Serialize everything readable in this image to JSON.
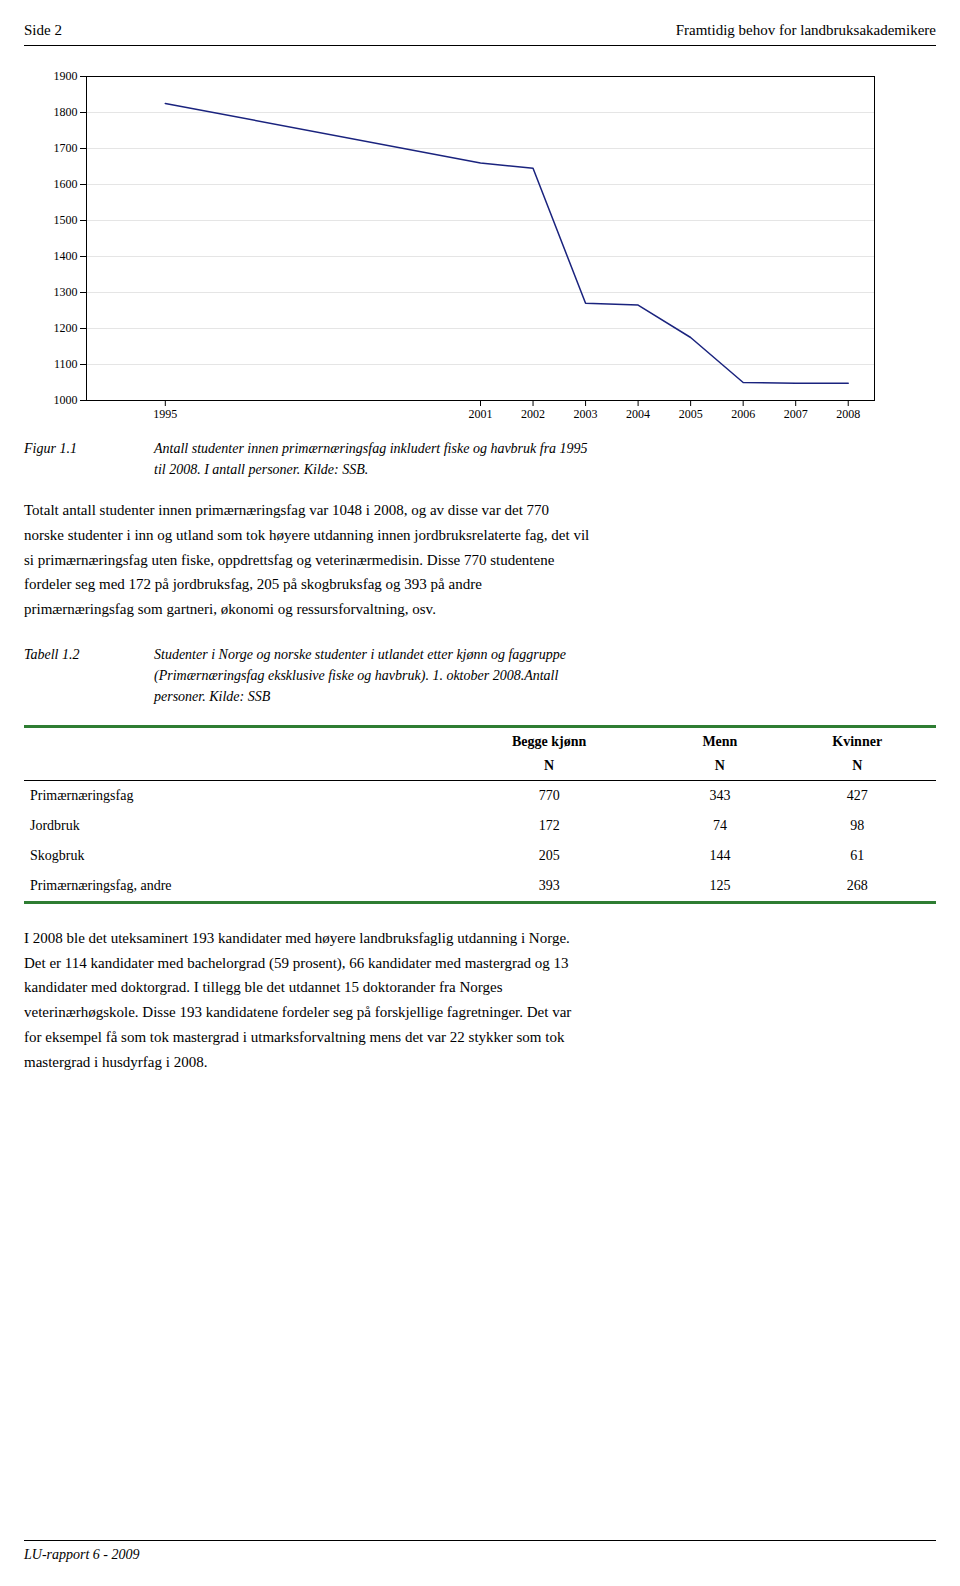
{
  "header_left": "Side 2",
  "header_right": "Framtidig behov for landbruksakademikere",
  "chart_data": {
    "type": "line",
    "x": [
      1995,
      2001,
      2002,
      2003,
      2004,
      2005,
      2006,
      2007,
      2008
    ],
    "values": [
      1825,
      1660,
      1645,
      1270,
      1265,
      1175,
      1050,
      1048,
      1048
    ],
    "color": "#1a237e",
    "xlim": [
      1993.5,
      2008.5
    ],
    "xticks": [
      1995,
      2001,
      2002,
      2003,
      2004,
      2005,
      2006,
      2007,
      2008
    ],
    "ylim": [
      1000,
      1900
    ],
    "yticks": [
      1000,
      1100,
      1200,
      1300,
      1400,
      1500,
      1600,
      1700,
      1800,
      1900
    ],
    "grid": true
  },
  "figure_caption": {
    "label": "Figur 1.1",
    "text": "Antall studenter innen primærnæringsfag inkludert fiske og havbruk fra 1995\ntil 2008. I antall personer. Kilde: SSB."
  },
  "body_text": "Totalt antall studenter innen primærnæringsfag var 1048 i 2008, og av disse var det 770\nnorske studenter i inn og utland som tok høyere utdanning innen jordbruksrelaterte fag, det vil\nsi primærnæringsfag uten fiske, oppdrettsfag og veterinærmedisin. Disse 770 studentene\nfordeler seg med 172 på jordbruksfag, 205 på skogbruksfag og 393 på andre\nprimærnæringsfag som gartneri, økonomi og ressursforvaltning, osv.",
  "table_caption": {
    "label": "Tabell 1.2",
    "text": "Studenter i Norge og norske studenter i utlandet etter kjønn og faggruppe\n(Primærnæringsfag eksklusive fiske og havbruk). 1. oktober 2008.Antall\npersoner. Kilde: SSB"
  },
  "table": {
    "columns": [
      "Begge kjønn",
      "Menn",
      "Kvinner"
    ],
    "subheaders": [
      "N",
      "N",
      "N"
    ],
    "rows": [
      [
        "Primærnæringsfag",
        "770",
        "343",
        "427"
      ],
      [
        "Jordbruk",
        "172",
        "74",
        "98"
      ],
      [
        "Skogbruk",
        "205",
        "144",
        "61"
      ],
      [
        "Primærnæringsfag, andre",
        "393",
        "125",
        "268"
      ]
    ]
  },
  "body_text2": "I 2008 ble det uteksaminert 193 kandidater med høyere landbruksfaglig utdanning i Norge.\nDet er 114 kandidater med bachelorgrad (59 prosent), 66 kandidater med mastergrad og 13\nkandidater med doktorgrad. I tillegg ble det utdannet 15 doktorander fra Norges\nveterinærhøgskole. Disse 193 kandidatene fordeler seg på forskjellige fagretninger. Det var\nfor eksempel få som tok mastergrad i utmarksforvaltning mens det var 22 stykker som tok\nmastergrad i husdyrfag i 2008.",
  "footer": "LU-rapport 6 - 2009"
}
